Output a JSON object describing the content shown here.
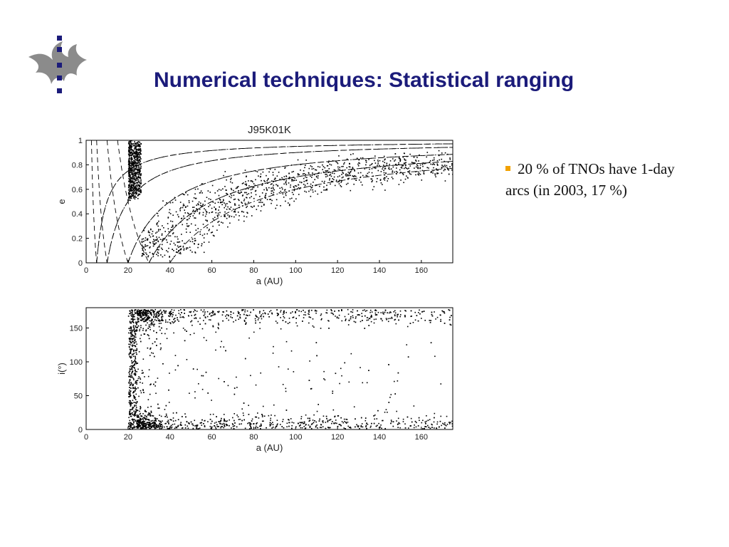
{
  "slide": {
    "title": "Numerical techniques: Statistical ranging",
    "logo_icon": "university-flame-logo-icon",
    "bullets": [
      "20 % of TNOs have 1-day arcs (in 2003, 17 %)"
    ],
    "bullet_color": "#f2a100",
    "title_color": "#1b1b7a"
  },
  "chart_data": [
    {
      "type": "scatter",
      "title": "J95K01K",
      "xlabel": "a (AU)",
      "ylabel": "e",
      "xlim": [
        0,
        175
      ],
      "ylim": [
        0,
        1
      ],
      "xticks": [
        0,
        20,
        40,
        60,
        80,
        100,
        120,
        140,
        160
      ],
      "yticks": [
        0,
        0.2,
        0.4,
        0.6,
        0.8,
        1
      ],
      "grid": false,
      "series": [
        {
          "points_description_omitted": true
        }
      ],
      "curves": [
        {
          "style": "dashed",
          "kind": "perihelion",
          "q": 5
        },
        {
          "style": "dashed",
          "kind": "perihelion",
          "q": 10
        },
        {
          "style": "dashed",
          "kind": "perihelion",
          "q": 20
        },
        {
          "style": "dashed",
          "kind": "perihelion",
          "q": 30
        },
        {
          "style": "dashed",
          "kind": "aphelion",
          "Q": 5
        },
        {
          "style": "dashed",
          "kind": "aphelion",
          "Q": 10
        },
        {
          "style": "dashed",
          "kind": "aphelion",
          "Q": 20
        },
        {
          "style": "dashed",
          "kind": "aphelion",
          "Q": 30
        },
        {
          "style": "dashdot",
          "kind": "perihelion",
          "q": 30
        },
        {
          "style": "dashdot",
          "kind": "perihelion",
          "q": 20
        },
        {
          "style": "dashdot",
          "kind": "perihelion",
          "q": 40
        },
        {
          "style": "dashdot",
          "kind": "perihelion",
          "q": 10
        },
        {
          "style": "dashdot",
          "kind": "perihelion",
          "q": 5
        }
      ]
    },
    {
      "type": "scatter",
      "title": "",
      "xlabel": "a (AU)",
      "ylabel": "i(°)",
      "xlim": [
        0,
        175
      ],
      "ylim": [
        0,
        180
      ],
      "xticks": [
        0,
        20,
        40,
        60,
        80,
        100,
        120,
        140,
        160
      ],
      "yticks": [
        0,
        50,
        100,
        150
      ],
      "grid": false,
      "series": [
        {
          "points_description_omitted": true
        }
      ]
    }
  ]
}
